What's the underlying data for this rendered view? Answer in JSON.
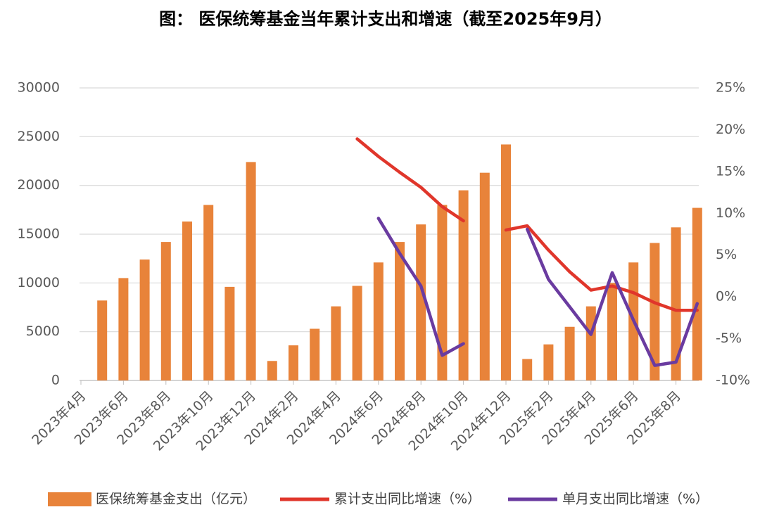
{
  "chart_data": {
    "type": "bar",
    "title": "图： 医保统筹基金当年累计支出和增速（截至2025年9月）",
    "categories": [
      "2023年4月",
      null,
      "2023年6月",
      null,
      "2023年8月",
      null,
      "2023年10月",
      null,
      "2023年12月",
      null,
      "2024年2月",
      null,
      "2024年4月",
      null,
      "2024年6月",
      null,
      "2024年8月",
      null,
      "2024年10月",
      null,
      "2024年12月",
      null,
      "2025年2月",
      null,
      "2025年4月",
      null,
      "2025年6月",
      null,
      "2025年8月",
      null
    ],
    "series": [
      {
        "name": "医保统筹基金支出（亿元）",
        "type": "bar",
        "color": "#e8833a",
        "values": [
          null,
          8200,
          10500,
          12400,
          14200,
          16300,
          18000,
          9600,
          22400,
          2000,
          3600,
          5300,
          7600,
          9700,
          12100,
          14200,
          16000,
          18000,
          19500,
          21300,
          24200,
          2200,
          3700,
          5500,
          7600,
          10000,
          12100,
          14100,
          15700,
          17700
        ]
      },
      {
        "name": "累计支出同比增速（%）",
        "type": "line",
        "axis": "y2",
        "color": "#e0362b",
        "values": [
          null,
          null,
          null,
          null,
          null,
          null,
          null,
          null,
          null,
          null,
          null,
          null,
          null,
          18.9,
          16.8,
          14.9,
          13.1,
          10.8,
          9.1,
          null,
          8.0,
          8.5,
          5.6,
          3.0,
          0.8,
          1.3,
          0.5,
          -0.7,
          -1.6,
          -1.6
        ]
      },
      {
        "name": "单月支出同比增速（%）",
        "type": "line",
        "axis": "y2",
        "color": "#6a3ba0",
        "values": [
          null,
          null,
          null,
          null,
          null,
          null,
          null,
          null,
          null,
          null,
          null,
          null,
          null,
          null,
          9.4,
          5.2,
          1.3,
          -7.0,
          -5.6,
          null,
          null,
          8.1,
          2.1,
          -1.2,
          -4.5,
          2.9,
          -2.8,
          -8.2,
          -7.8,
          -0.8
        ]
      }
    ],
    "ylim": [
      0,
      30000
    ],
    "yticks": [
      0,
      5000,
      10000,
      15000,
      20000,
      25000,
      30000
    ],
    "y2lim": [
      -10,
      25
    ],
    "y2ticks": [
      {
        "value": -10,
        "label": "-10%"
      },
      {
        "value": -5,
        "label": "-5%"
      },
      {
        "value": 0,
        "label": "0%"
      },
      {
        "value": 5,
        "label": "5%"
      },
      {
        "value": 10,
        "label": "10%"
      },
      {
        "value": 15,
        "label": "15%"
      },
      {
        "value": 20,
        "label": "20%"
      },
      {
        "value": 25,
        "label": "25%"
      }
    ],
    "grid": true,
    "legend": "bottom"
  }
}
